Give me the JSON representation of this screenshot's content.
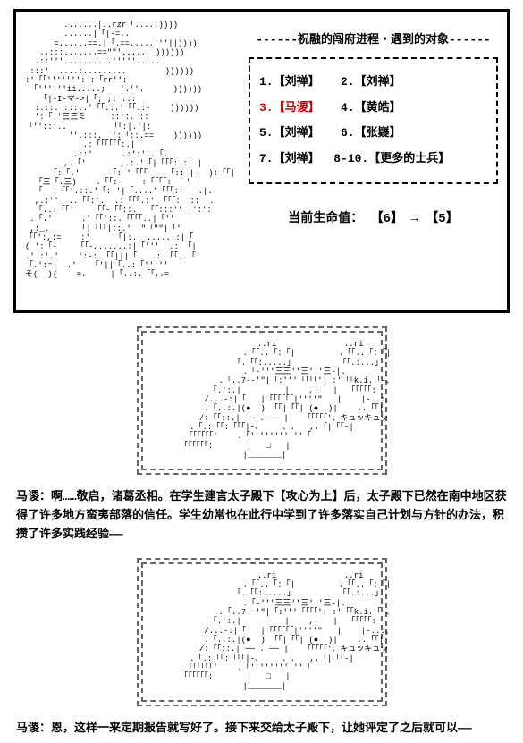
{
  "header": "------祝融的闯府进程・遇到的对象------",
  "encounters": {
    "row1": {
      "a": "1.【刘禅】",
      "b": "2.【刘禅】"
    },
    "row2": {
      "a": "3.【马谡】",
      "b": "4.【黄皓】",
      "highlight_a": true
    },
    "row3": {
      "a": "5.【刘禅】",
      "b": "6.【张嶷】"
    },
    "row4": {
      "a": "7.【刘禅】",
      "b": "8-10.【更多的士兵】"
    }
  },
  "hp": {
    "label": "当前生命值：",
    "from": "【6】",
    "to": "【5】"
  },
  "dialogue1_name": "马谡：",
  "dialogue1_text": "啊……敬启，诸葛丞相。在学生建言太子殿下【攻心为上】后，太子殿下已然在南中地区获得了许多地方蛮夷部落的信任。学生幼常也在此行中学到了许多落实自己计划与方针的办法，积攒了许多实践经验——",
  "dialogue2_name": "马谡：",
  "dialogue2_text": "恩，这样一来定期报告就写好了。接下来交给太子殿下，让她评定了之后就可以——",
  "ascii_main": "        .......|..rzr「.....))))\n        ......|「|-=..\n      =......==.|「.==.....'''||))))\n   ..:::.......==\"\"'.....  ))))))\n  .::'''..........'''''.....\n :::'  ....:.........        ))))))\n:'「「''''''': :「rr'':\n 「''''''ii.....;   '.''.      ))))))\n   「|-I-マ->|「; ;: :::\n  :.::. :::..'「「::.'「「.:-    ))))))\n  ':「''三三ミ     ::':. ::\n「'':::..         「「:|.'|:\n         ''.:::.  ':「::.==    ))))))\n            .:「「「「「「:.|\n          .::'      .:':'..「.\n        ,.「'       ,.:.'「|「「「:.:: |\n     「:「.'      「: '「「「    「:: |-  ):「「|\n  「三「.三)    .「「:     :「「「「:   ' |\n  「  .「「'.::.'「: '|「....'「「「::   .|.\n  ,.:''  ..「「:'.  .:「「「.:' 「「「:  :: |.\n  「..:「「'    「「-「「::.  「「:::'' |':':\n .「.'      .'「「'::.「「「「..|「''\n ,:_.      「|「「「|::.'  \"「\"\"|「'\n「「':,:=    :'     「|:.  ......:|「\n( ':「-    「「-,......:|「'''  .:|「|\n.' :'.'    ':-:.「「|||「   .: 「「..「'\n「.':=   .'   「'||「..:「'''''\nそ(  ){    =.     |「..:.「「..=",
  "ascii_scene": "                       ..ri              ..ri\n                    .「「..「:「|         .「「..「:「|\n                  「.「「:.....」         「「.:...」\n                    .「-'''三三''三'''三-|.\n               .「..7--'\"|「:'''「「「「': :'「「k.i.「-、\n             「.':.|         |    ,.   |  「「「「「:\n            /...-:|「   |「「「「「「|''''\"   |    |-..:、\n            .「..:.|(●  ) 「「|「「| (●  )|    ..「「|\n           /:「「::.| ── . ── |   「「「「「'、キュッキュッ\n         .「.:「「:「「「|-、    、.   ,.「|「「-|\n        「「「「「「'    .「'''''''''''「\n       「「「「「「:       |   □   |\n                    |_______|"
}
